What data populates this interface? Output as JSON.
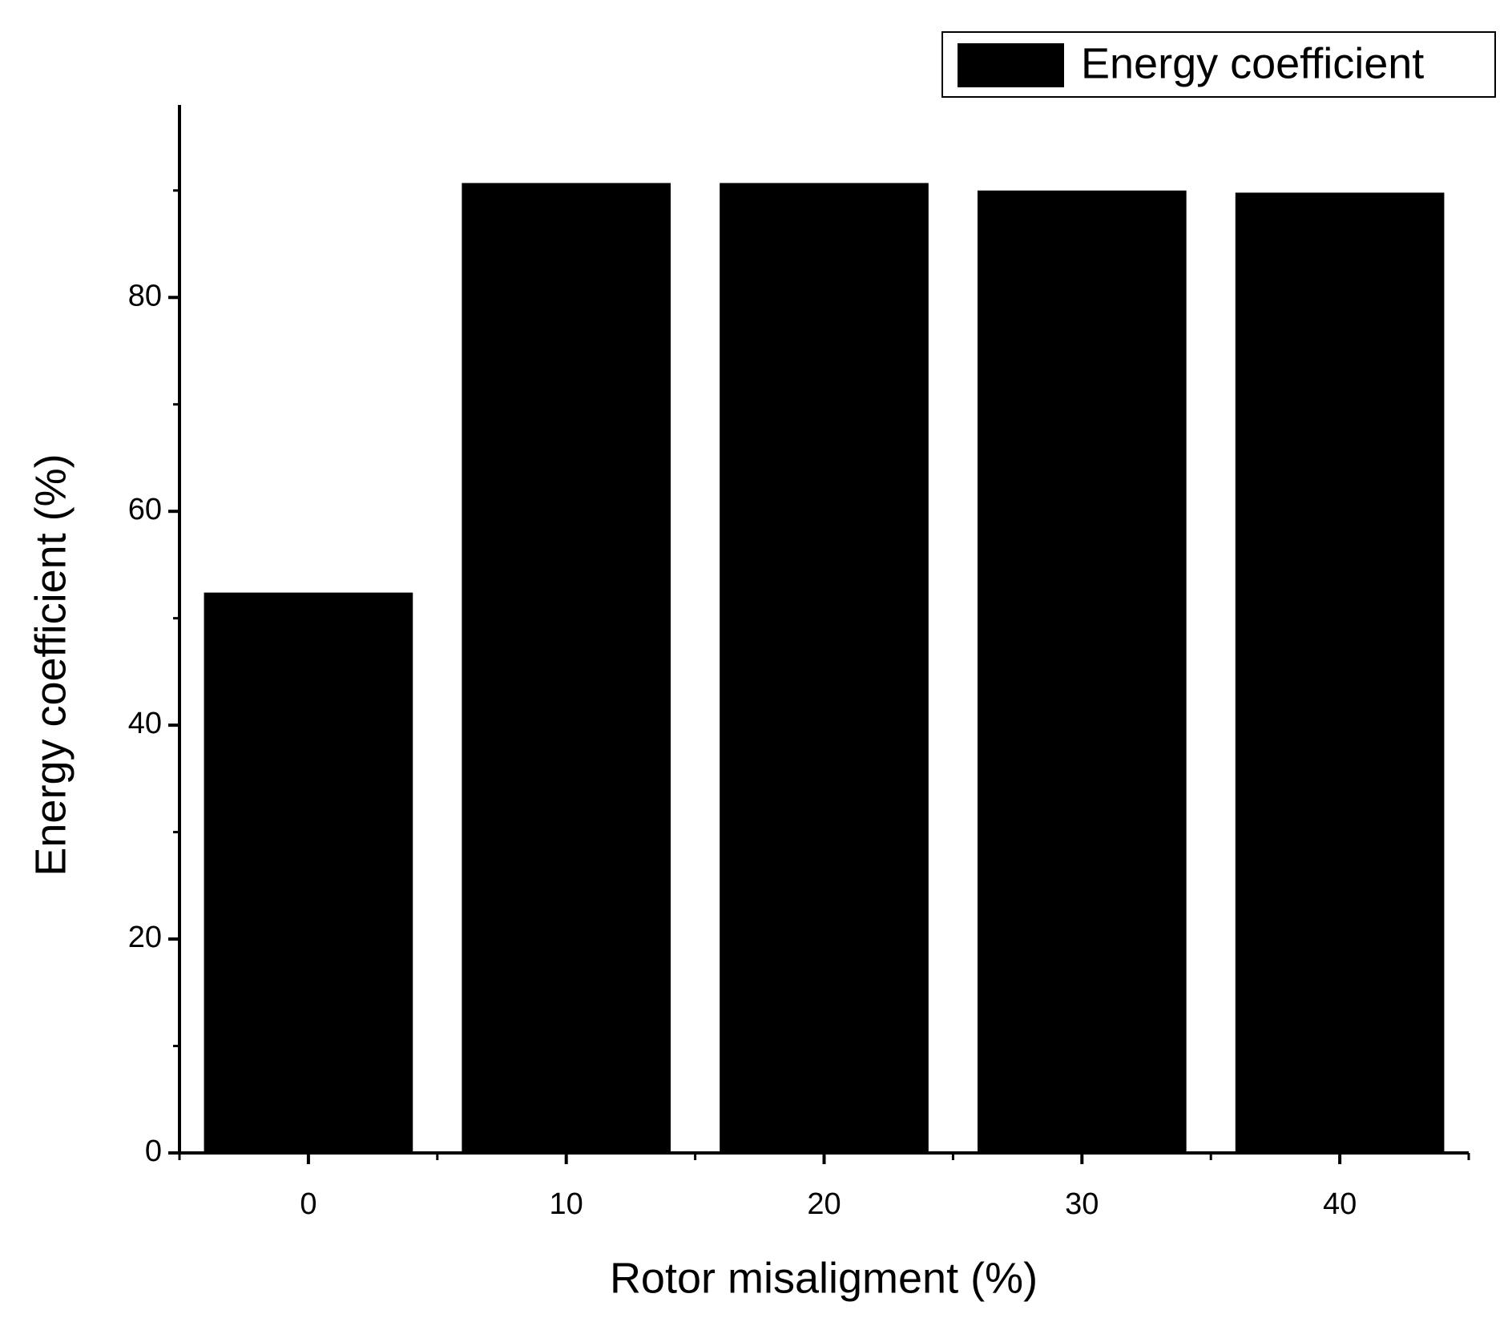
{
  "chart_data": {
    "type": "bar",
    "x_label": "Rotor misaligment (%)",
    "y_label": "Energy coefficient (%)",
    "x": [
      0,
      10,
      20,
      30,
      40
    ],
    "series": [
      {
        "name": "Energy coefficient",
        "color": "#000000",
        "values": [
          52.4,
          90.7,
          90.7,
          90.0,
          89.8
        ]
      }
    ],
    "xlim": [
      -5,
      45
    ],
    "xticks": [
      0,
      10,
      20,
      30,
      40
    ],
    "ylim": [
      0,
      98
    ],
    "yticks": [
      0,
      20,
      40,
      60,
      80
    ],
    "grid": false,
    "legend": "top-right"
  }
}
